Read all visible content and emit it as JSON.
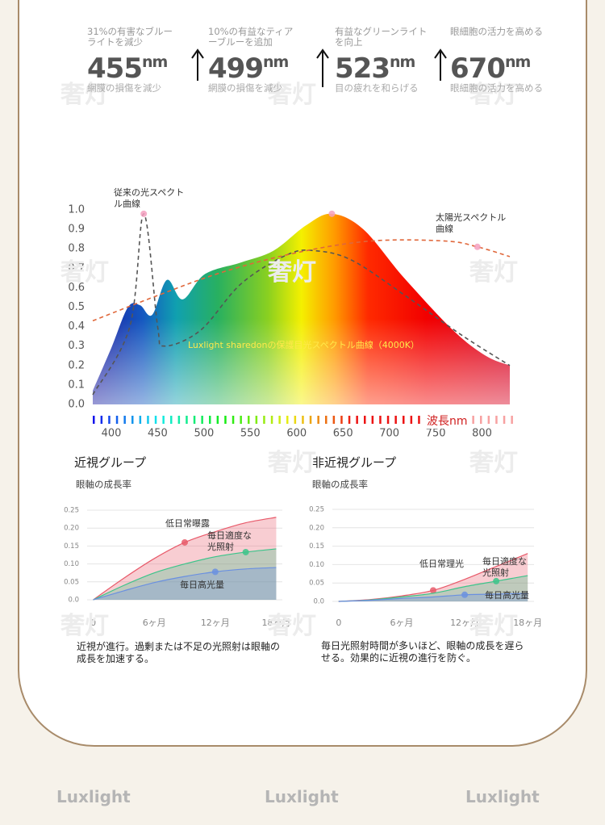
{
  "watermark": "奢灯",
  "header": {
    "items": [
      {
        "top": "31%の有害なブルーライトを減少",
        "value": "455",
        "unit": "nm",
        "note": "網膜の損傷を減少"
      },
      {
        "top": "10%の有益なティアーブルーを追加",
        "value": "499",
        "unit": "nm",
        "note": "網膜の損傷を減少"
      },
      {
        "top": "有益なグリーンライトを向上",
        "value": "523",
        "unit": "nm",
        "note": "目の疲れを和らげる"
      },
      {
        "top": "眼細胞の活力を高める",
        "value": "670",
        "unit": "nm",
        "note": "眼細胞の活力を高める"
      }
    ]
  },
  "chart_data": [
    {
      "type": "area",
      "x_label": "波長nm",
      "xlim": [
        380,
        830
      ],
      "xticks": [
        400,
        450,
        500,
        550,
        600,
        650,
        700,
        750,
        800
      ],
      "ylim": [
        0,
        1
      ],
      "yticks": [
        {
          "value": 0,
          "label": "0.0"
        },
        0.1,
        0.2,
        0.3,
        0.4,
        0.5,
        0.6,
        0.7,
        0.8,
        0.9,
        {
          "value": 1,
          "label": "1.0"
        }
      ],
      "grid": false,
      "series": [
        {
          "name": "Luxlight sharedonの保護目光スペクトル曲線（4000K）",
          "x": [
            380,
            400,
            418,
            431,
            444,
            460,
            477,
            501,
            540,
            575,
            610,
            638,
            672,
            716,
            769,
            804,
            830
          ],
          "values": [
            0.07,
            0.29,
            0.5,
            0.51,
            0.46,
            0.64,
            0.54,
            0.67,
            0.73,
            0.79,
            0.92,
            0.98,
            0.9,
            0.65,
            0.38,
            0.25,
            0.2
          ]
        },
        {
          "name": "従来の光スペクトル曲線",
          "color": "#555555",
          "line_style": "dashed",
          "x": [
            380,
            420,
            435,
            450,
            457,
            496,
            540,
            590,
            620,
            660,
            720,
            780,
            830
          ],
          "values": [
            0.05,
            0.4,
            0.98,
            0.4,
            0.3,
            0.38,
            0.62,
            0.77,
            0.79,
            0.74,
            0.55,
            0.35,
            0.2
          ]
        },
        {
          "name": "太陽光スペクトル曲線",
          "color": "#e0673a",
          "line_style": "dashed",
          "x": [
            380,
            450,
            520,
            600,
            680,
            760,
            795,
            830
          ],
          "values": [
            0.43,
            0.56,
            0.68,
            0.78,
            0.84,
            0.84,
            0.81,
            0.76
          ]
        }
      ]
    },
    {
      "type": "area",
      "title": "近視グループ",
      "subtitle": "眼軸の成長率",
      "caption": "近視が進行。過剰または不足の光照射は眼軸の成長を加速する。",
      "x": [
        0,
        3,
        6,
        9,
        12,
        15,
        18
      ],
      "xlim": [
        -0.6,
        18.6
      ],
      "xticks": [
        0,
        {
          "value": 6,
          "label": "6ヶ月"
        },
        {
          "value": 12,
          "label": "12ヶ月"
        },
        {
          "value": 18,
          "label": "18ヶ月"
        }
      ],
      "ylim": [
        0,
        0.25
      ],
      "yticks": [
        {
          "value": 0,
          "label": "0.0"
        },
        0.05,
        {
          "value": 0.1,
          "label": "0.10"
        },
        0.15,
        {
          "value": 0.2,
          "label": "0.20"
        },
        0.25
      ],
      "grid": true,
      "series": [
        {
          "name": "低日常曝露",
          "color": "#e85a6a",
          "values": [
            0,
            0.06,
            0.115,
            0.16,
            0.19,
            0.215,
            0.23
          ]
        },
        {
          "name": "毎日適度な光照射",
          "color": "#3cc48a",
          "values": [
            0,
            0.04,
            0.075,
            0.1,
            0.12,
            0.133,
            0.142
          ]
        },
        {
          "name": "毎日高光量",
          "color": "#6a90e0",
          "values": [
            0,
            0.025,
            0.048,
            0.065,
            0.078,
            0.086,
            0.09
          ]
        }
      ]
    },
    {
      "type": "area",
      "title": "非近視グループ",
      "subtitle": "眼軸の成長率",
      "caption": "毎日光照射時間が多いほど、眼軸の成長を遅らせる。効果的に近視の進行を防ぐ。",
      "x": [
        0,
        3,
        6,
        9,
        12,
        15,
        18
      ],
      "xlim": [
        -0.6,
        18.6
      ],
      "xticks": [
        0,
        {
          "value": 6,
          "label": "6ヶ月"
        },
        {
          "value": 12,
          "label": "12ヶ月"
        },
        {
          "value": 18,
          "label": "18ヶ月"
        }
      ],
      "ylim": [
        0,
        0.25
      ],
      "yticks": [
        {
          "value": 0,
          "label": "0.0"
        },
        0.05,
        {
          "value": 0.1,
          "label": "0.10"
        },
        0.15,
        {
          "value": 0.2,
          "label": "0.20"
        },
        0.25
      ],
      "grid": true,
      "series": [
        {
          "name": "低日常理光",
          "color": "#e85a6a",
          "values": [
            0,
            0.005,
            0.015,
            0.03,
            0.06,
            0.095,
            0.13
          ]
        },
        {
          "name": "毎日適度な光照射",
          "color": "#3cc48a",
          "values": [
            0,
            0.004,
            0.012,
            0.022,
            0.04,
            0.055,
            0.07
          ]
        },
        {
          "name": "毎日高光量",
          "color": "#6a90e0",
          "values": [
            0,
            0.003,
            0.008,
            0.012,
            0.018,
            0.02,
            0.022
          ]
        }
      ]
    }
  ],
  "footer": {
    "brand": "Luxlight"
  }
}
